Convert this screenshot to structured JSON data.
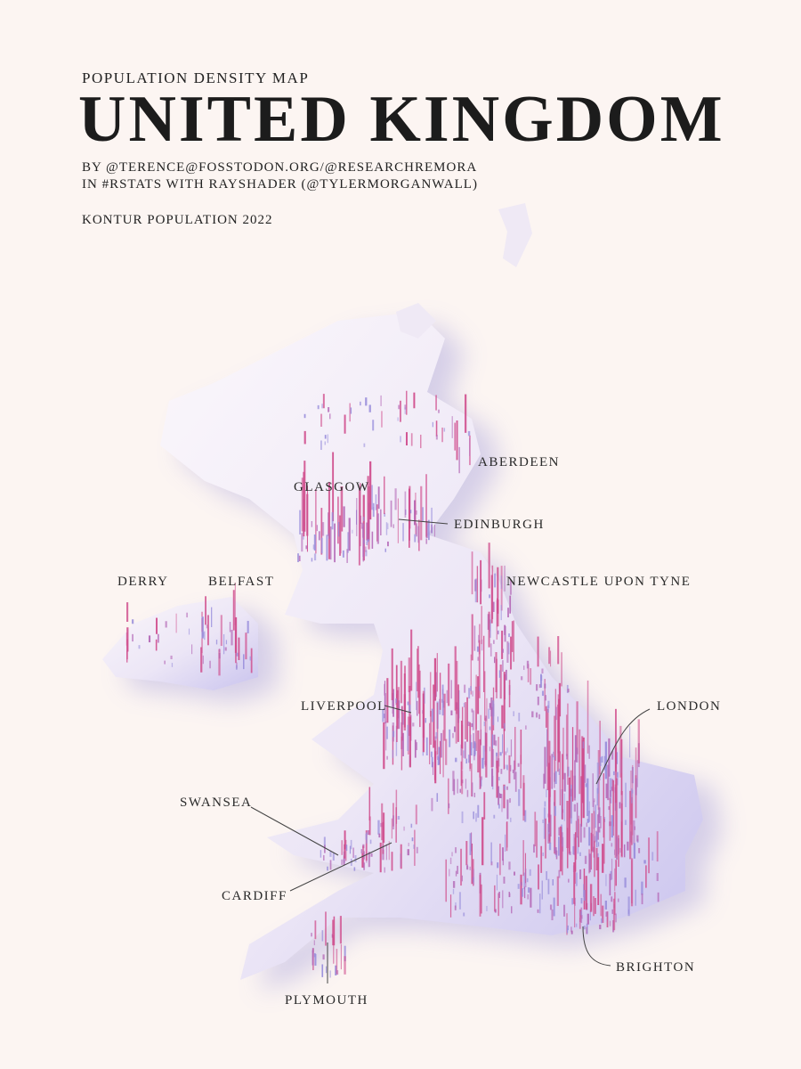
{
  "header": {
    "kicker": "POPULATION DENSITY MAP",
    "title": "UNITED KINGDOM",
    "credits": [
      "BY @TERENCE@FOSSTODON.ORG/@RESEARCHREMORA",
      "IN #RSTATS WITH RAYSHADER (@TYLERMORGANWALL)"
    ],
    "source": "KONTUR POPULATION 2022"
  },
  "cities": [
    "ABERDEEN",
    "GLASGOW",
    "EDINBURGH",
    "DERRY",
    "BELFAST",
    "NEWCASTLE UPON TYNE",
    "LIVERPOOL",
    "LONDON",
    "SWANSEA",
    "CARDIFF",
    "BRIGHTON",
    "PLYMOUTH"
  ]
}
